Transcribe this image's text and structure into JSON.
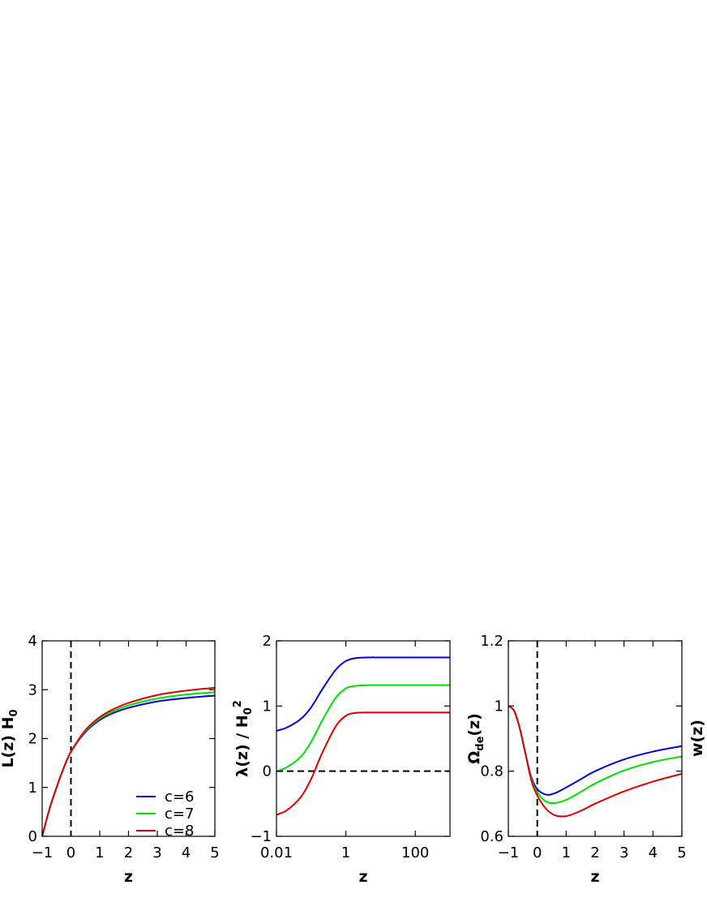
{
  "chart_data": [
    {
      "type": "line",
      "panel": "a",
      "xlabel": "z",
      "ylabel_main": "L(z) H",
      "ylabel_sub": "0",
      "xlim": [
        -1,
        5
      ],
      "ylim": [
        0,
        4
      ],
      "xticks": [
        -1,
        0,
        1,
        2,
        3,
        4,
        5
      ],
      "xtick_labels": [
        "−1",
        "0",
        "1",
        "2",
        "3",
        "4",
        "5"
      ],
      "yticks": [
        0,
        1,
        2,
        3,
        4
      ],
      "ytick_labels": [
        "0",
        "1",
        "2",
        "3",
        "4"
      ],
      "vline": 0,
      "legend": {
        "position": "lower-right",
        "entries": [
          "c=6",
          "c=7",
          "c=8"
        ]
      },
      "series": [
        {
          "name": "c=6",
          "color": "#0000e0",
          "x": [
            -1,
            -0.75,
            -0.5,
            -0.25,
            0,
            0.5,
            1,
            1.5,
            2,
            3,
            4,
            5
          ],
          "y": [
            0.0,
            0.55,
            1.0,
            1.4,
            1.73,
            2.13,
            2.38,
            2.53,
            2.63,
            2.76,
            2.83,
            2.88
          ]
        },
        {
          "name": "c=7",
          "color": "#00e000",
          "x": [
            -1,
            -0.75,
            -0.5,
            -0.25,
            0,
            0.5,
            1,
            1.5,
            2,
            3,
            4,
            5
          ],
          "y": [
            0.0,
            0.55,
            1.0,
            1.4,
            1.73,
            2.15,
            2.41,
            2.57,
            2.68,
            2.82,
            2.9,
            2.95
          ]
        },
        {
          "name": "c=8",
          "color": "#e00000",
          "x": [
            -1,
            -0.75,
            -0.5,
            -0.25,
            0,
            0.5,
            1,
            1.5,
            2,
            3,
            4,
            5
          ],
          "y": [
            0.0,
            0.55,
            1.0,
            1.4,
            1.73,
            2.17,
            2.44,
            2.61,
            2.73,
            2.89,
            2.98,
            3.04
          ]
        }
      ]
    },
    {
      "type": "line",
      "panel": "b",
      "xlabel": "z",
      "ylabel_main": "λ(z) / H",
      "ylabel_sub": "0",
      "ylabel_sup": "2",
      "xscale": "log",
      "xlim": [
        0.01,
        1000
      ],
      "ylim": [
        -1,
        2
      ],
      "xticks": [
        0.01,
        1,
        100
      ],
      "xtick_labels": [
        "0.01",
        "1",
        "100"
      ],
      "yticks": [
        -1,
        0,
        1,
        2
      ],
      "ytick_labels": [
        "−1",
        "0",
        "1",
        "2"
      ],
      "hline": 0,
      "series": [
        {
          "name": "c=6",
          "color": "#0000e0",
          "x": [
            0.01,
            0.02,
            0.05,
            0.1,
            0.2,
            0.5,
            1,
            2,
            5,
            10,
            100,
            1000
          ],
          "y": [
            0.62,
            0.67,
            0.8,
            0.98,
            1.24,
            1.55,
            1.69,
            1.735,
            1.745,
            1.745,
            1.745,
            1.745
          ]
        },
        {
          "name": "c=7",
          "color": "#00e000",
          "x": [
            0.01,
            0.02,
            0.05,
            0.1,
            0.2,
            0.5,
            1,
            2,
            5,
            10,
            100,
            1000
          ],
          "y": [
            0.0,
            0.06,
            0.22,
            0.45,
            0.76,
            1.12,
            1.27,
            1.31,
            1.32,
            1.32,
            1.32,
            1.32
          ]
        },
        {
          "name": "c=8",
          "color": "#e00000",
          "x": [
            0.01,
            0.02,
            0.05,
            0.1,
            0.2,
            0.5,
            1,
            2,
            5,
            10,
            100,
            1000
          ],
          "y": [
            -0.67,
            -0.6,
            -0.4,
            -0.12,
            0.26,
            0.68,
            0.85,
            0.895,
            0.9,
            0.9,
            0.9,
            0.9
          ]
        }
      ]
    },
    {
      "type": "line",
      "panel": "c",
      "xlabel": "z",
      "ylabel_main": "Ω",
      "ylabel_sub": "de",
      "ylabel_tail": "(z)",
      "xlim": [
        -1,
        5
      ],
      "ylim": [
        0.6,
        1.2
      ],
      "xticks": [
        -1,
        0,
        1,
        2,
        3,
        4,
        5
      ],
      "xtick_labels": [
        "−1",
        "0",
        "1",
        "2",
        "3",
        "4",
        "5"
      ],
      "yticks": [
        0.6,
        0.8,
        1.0,
        1.2
      ],
      "ytick_labels": [
        "0.6",
        "0.8",
        "1",
        "1.2"
      ],
      "vline": 0,
      "series": [
        {
          "name": "c=6",
          "color": "#0000e0",
          "x": [
            -1,
            -0.8,
            -0.6,
            -0.4,
            -0.2,
            0,
            0.3,
            0.6,
            1,
            1.5,
            2,
            3,
            4,
            5
          ],
          "y": [
            1.0,
            0.985,
            0.93,
            0.85,
            0.78,
            0.745,
            0.728,
            0.732,
            0.75,
            0.775,
            0.8,
            0.836,
            0.86,
            0.877
          ]
        },
        {
          "name": "c=7",
          "color": "#00e000",
          "x": [
            -1,
            -0.8,
            -0.6,
            -0.4,
            -0.2,
            0,
            0.3,
            0.6,
            1,
            1.5,
            2,
            3,
            4,
            5
          ],
          "y": [
            1.0,
            0.985,
            0.93,
            0.85,
            0.775,
            0.735,
            0.707,
            0.702,
            0.712,
            0.736,
            0.762,
            0.802,
            0.828,
            0.845
          ]
        },
        {
          "name": "c=8",
          "color": "#e00000",
          "x": [
            -1,
            -0.8,
            -0.6,
            -0.4,
            -0.2,
            0,
            0.3,
            0.6,
            1,
            1.5,
            2,
            3,
            4,
            5
          ],
          "y": [
            1.0,
            0.985,
            0.93,
            0.85,
            0.77,
            0.725,
            0.685,
            0.665,
            0.662,
            0.678,
            0.7,
            0.738,
            0.768,
            0.792
          ]
        }
      ]
    },
    {
      "type": "line",
      "panel": "d",
      "ylabel_main": "w(z)"
    }
  ]
}
